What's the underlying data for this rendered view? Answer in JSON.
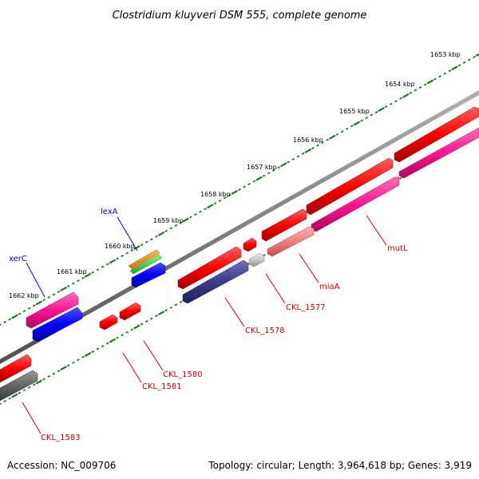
{
  "title": "Clostridium kluyveri DSM 555, complete genome",
  "footer": {
    "accession": "Accession: NC_009706",
    "topology": "Topology: circular; Length: 3,964,618 bp; Genes: 3,919"
  },
  "ticks": [
    "1653 kbp",
    "1654 kbp",
    "1655 kbp",
    "1656 kbp",
    "1657 kbp",
    "1658 kbp",
    "1659 kbp",
    "1660 kbp",
    "1661 kbp",
    "1662 kbp"
  ],
  "gene_labels": [
    "lexA",
    "xerC",
    "mutL",
    "miaA",
    "CKL_1577",
    "CKL_1578",
    "CKL_1580",
    "CKL_1581",
    "CKL_1583"
  ],
  "colors": {
    "backbone": "#808080",
    "tick_marks": "#1a7a1a",
    "cds_red": "#ff0000",
    "cds_magenta": "#ff1493",
    "cds_blue": "#0000ff",
    "cds_navy": "#3c3c8c",
    "cds_gray": "#646464",
    "cds_salmon": "#f08080",
    "cds_light_gray": "#c8c8c8",
    "cds_orange": "#ff8c00",
    "cds_green": "#32cd32",
    "label_red": "#cc0000",
    "label_blue": "#0000cc"
  }
}
